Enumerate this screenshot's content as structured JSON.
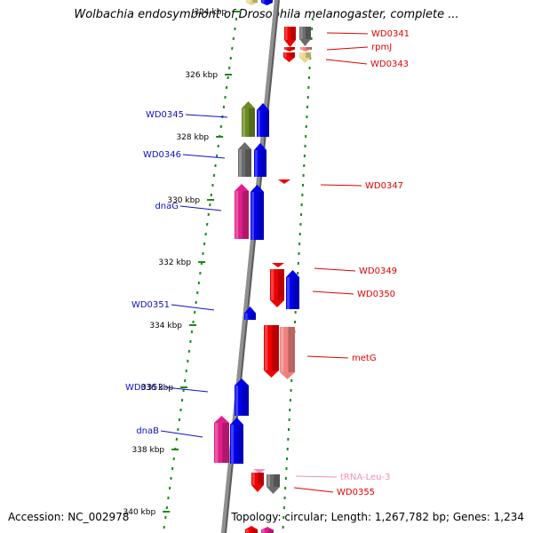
{
  "title": "Wolbachia endosymbiont of Drosophila melanogaster, complete ...",
  "accession": "Accession: NC_002978",
  "summary": "Topology: circular; Length: 1,267,782 bp; Genes: 1,234",
  "colors": {
    "left_label": "#1010c8",
    "right_label": "#e00000",
    "trna_label": "#f090b8",
    "tick": "#1a8a1a",
    "backbone": "#909090"
  },
  "scale": {
    "unit": "kbp",
    "ticks": [
      "324 kbp",
      "326 kbp",
      "328 kbp",
      "330 kbp",
      "332 kbp",
      "334 kbp",
      "336 kbp",
      "338 kbp",
      "340 kbp"
    ]
  },
  "genes_left": [
    {
      "label": "WD0345",
      "color": "#6a8a22",
      "strand": "+"
    },
    {
      "label": "WD0346",
      "color": "#6b6b6b",
      "strand": "+"
    },
    {
      "label": "dnaG",
      "color": "#e0208a",
      "strand": "+"
    },
    {
      "label": "WD0351",
      "color": "#0000ee",
      "strand": "+"
    },
    {
      "label": "WD0353",
      "color": "#0000ee",
      "strand": "+"
    },
    {
      "label": "dnaB",
      "color": "#e0208a",
      "strand": "+"
    }
  ],
  "genes_right": [
    {
      "label": "WD0341",
      "color": "#ee0000",
      "strand": "-"
    },
    {
      "label": "rpmJ",
      "color": "#ee0000",
      "strand": "-"
    },
    {
      "label": "WD0343",
      "color": "#e6d890",
      "strand": "-"
    },
    {
      "label": "WD0347",
      "color": "#ee0000",
      "strand": "-"
    },
    {
      "label": "WD0349",
      "color": "#ee0000",
      "strand": "-"
    },
    {
      "label": "WD0350",
      "color": "#0000ee",
      "strand": "+"
    },
    {
      "label": "metG",
      "color": "#f08080",
      "strand": "-"
    },
    {
      "label": "tRNA-Leu-3",
      "color": "#f090b8",
      "strand": "-"
    },
    {
      "label": "WD0355",
      "color": "#ee0000",
      "strand": "-"
    }
  ]
}
